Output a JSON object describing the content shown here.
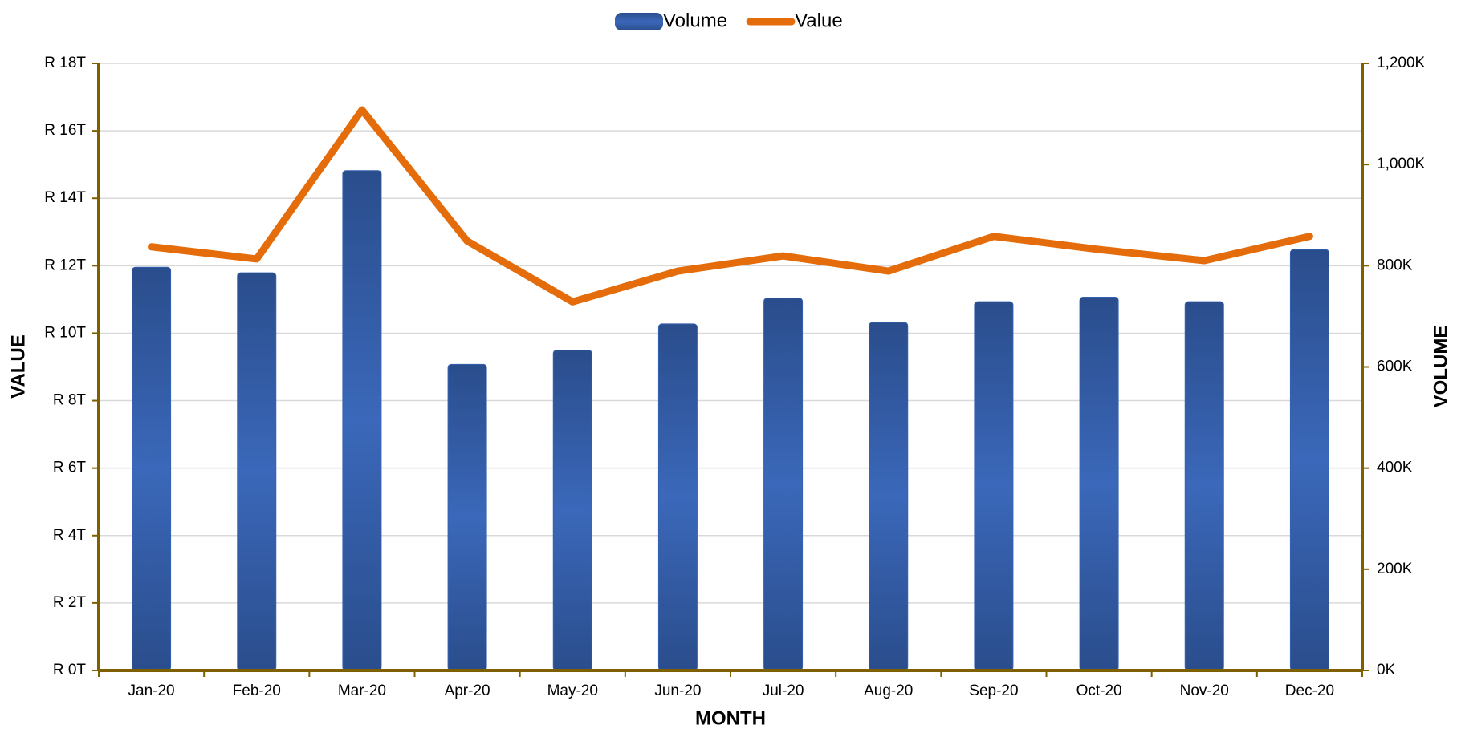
{
  "chart_data": {
    "type": "bar_line",
    "x_label": "MONTH",
    "y_label": "VALUE",
    "y2_label": "VOLUME",
    "categories": [
      "Jan-20",
      "Feb-20",
      "Mar-20",
      "Apr-20",
      "May-20",
      "Jun-20",
      "Jul-20",
      "Aug-20",
      "Sep-20",
      "Oct-20",
      "Nov-20",
      "Dec-20"
    ],
    "series": [
      {
        "name": "Volume",
        "type": "bar",
        "axis": "y2",
        "color": "#3462b0",
        "values": [
          797,
          786,
          988,
          605,
          633,
          685,
          736,
          688,
          729,
          738,
          729,
          832
        ]
      },
      {
        "name": "Value",
        "type": "line",
        "axis": "y",
        "color": "#e46c0a",
        "values": [
          12.56,
          12.2,
          16.62,
          12.73,
          10.93,
          11.84,
          12.29,
          11.84,
          12.87,
          12.48,
          12.15,
          12.87
        ]
      }
    ],
    "ylim": [
      0,
      18
    ],
    "yticks": [
      {
        "value": 0,
        "label": "R 0T"
      },
      {
        "value": 2,
        "label": "R 2T"
      },
      {
        "value": 4,
        "label": "R 4T"
      },
      {
        "value": 6,
        "label": "R 6T"
      },
      {
        "value": 8,
        "label": "R 8T"
      },
      {
        "value": 10,
        "label": "R 10T"
      },
      {
        "value": 12,
        "label": "R 12T"
      },
      {
        "value": 14,
        "label": "R 14T"
      },
      {
        "value": 16,
        "label": "R 16T"
      },
      {
        "value": 18,
        "label": "R 18T"
      }
    ],
    "y2lim": [
      0,
      1200
    ],
    "y2ticks": [
      {
        "value": 0,
        "label": "0K"
      },
      {
        "value": 200,
        "label": "200K"
      },
      {
        "value": 400,
        "label": "400K"
      },
      {
        "value": 600,
        "label": "600K"
      },
      {
        "value": 800,
        "label": "800K"
      },
      {
        "value": 1000,
        "label": "1,000K"
      },
      {
        "value": 1200,
        "label": "1,200K"
      }
    ],
    "grid": true,
    "legend": "top"
  }
}
